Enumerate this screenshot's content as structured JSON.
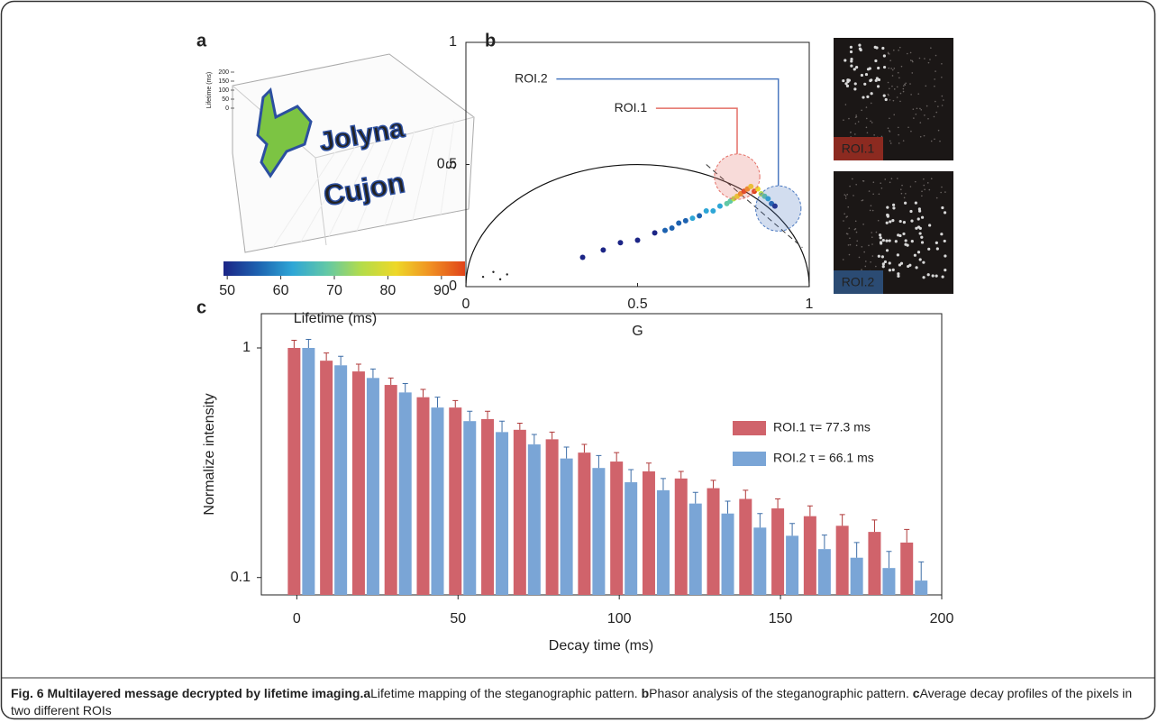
{
  "chart_data": [
    {
      "type": "colorbar",
      "panel": "a",
      "xlabel": "Lifetime (ms)",
      "xlim": [
        49.3,
        94.4
      ],
      "xticks": [
        50,
        60,
        70,
        80,
        90
      ],
      "colors": [
        "#1c2586",
        "#1d62b0",
        "#2ea6d6",
        "#62c8a6",
        "#b4dc4a",
        "#eed828",
        "#f09022",
        "#e0431a"
      ],
      "zlabel": "Lifetime (ms)",
      "zticks": [
        0,
        50,
        100,
        150,
        200
      ],
      "pattern_text": [
        "Jolyna",
        "Cujon"
      ],
      "pattern_color": "#7cc443"
    },
    {
      "type": "scatter",
      "panel": "b",
      "xlabel": "G",
      "ylabel": "S",
      "xlim": [
        0,
        1
      ],
      "ylim": [
        0,
        1
      ],
      "xticks": [
        0,
        0.5,
        1
      ],
      "yticks": [
        0,
        0.5,
        1
      ],
      "x": [
        0.05,
        0.08,
        0.1,
        0.12,
        0.34,
        0.4,
        0.45,
        0.5,
        0.55,
        0.58,
        0.6,
        0.62,
        0.64,
        0.66,
        0.68,
        0.7,
        0.72,
        0.74,
        0.76,
        0.77,
        0.78,
        0.79,
        0.8,
        0.81,
        0.82,
        0.83,
        0.84,
        0.85,
        0.86,
        0.87,
        0.88,
        0.89,
        0.9
      ],
      "y": [
        0.04,
        0.06,
        0.03,
        0.05,
        0.12,
        0.15,
        0.18,
        0.19,
        0.22,
        0.23,
        0.24,
        0.26,
        0.27,
        0.28,
        0.29,
        0.31,
        0.31,
        0.33,
        0.34,
        0.35,
        0.36,
        0.37,
        0.38,
        0.39,
        0.4,
        0.41,
        0.39,
        0.4,
        0.38,
        0.37,
        0.36,
        0.34,
        0.33
      ],
      "colors": [
        "#222",
        "#222",
        "#222",
        "#222",
        "#1c2586",
        "#1c2586",
        "#1c2586",
        "#1c2586",
        "#1c2586",
        "#1d62b0",
        "#1d62b0",
        "#1d62b0",
        "#1d62b0",
        "#2ea6d6",
        "#1d62b0",
        "#2ea6d6",
        "#2ea6d6",
        "#2ea6d6",
        "#62c8a6",
        "#62c8a6",
        "#b4dc4a",
        "#eed828",
        "#f09022",
        "#e0431a",
        "#f09022",
        "#eed828",
        "#e0431a",
        "#eed828",
        "#b4dc4a",
        "#62c8a6",
        "#2ea6d6",
        "#1d62b0",
        "#1c2586"
      ],
      "rois": [
        {
          "name": "ROI.1",
          "color": "#e46f66",
          "center": [
            0.79,
            0.45
          ],
          "radius": 0.066
        },
        {
          "name": "ROI.2",
          "color": "#4a78c0",
          "center": [
            0.91,
            0.32
          ],
          "radius": 0.066
        }
      ],
      "images": [
        {
          "label": "ROI.1",
          "color": "#8c2a20"
        },
        {
          "label": "ROI.2",
          "color": "#2b4b73"
        }
      ]
    },
    {
      "type": "bar",
      "panel": "c",
      "xlabel": "Decay time (ms)",
      "ylabel": "Normalize intensity",
      "log_y": true,
      "xlim": [
        -11,
        200
      ],
      "xticks": [
        0,
        50,
        100,
        150,
        200
      ],
      "ylim": [
        0.084,
        1.41
      ],
      "yticks": [
        0.1,
        1
      ],
      "legend": "upper right",
      "x": [
        0,
        10,
        20,
        30,
        40,
        50,
        60,
        70,
        80,
        90,
        100,
        110,
        120,
        130,
        140,
        150,
        160,
        170,
        180,
        190
      ],
      "series": [
        {
          "name": "ROI.1 τ= 77.3 ms",
          "color": "#d0636b",
          "error_color": "#b03a3a",
          "values": [
            1,
            0.88,
            0.79,
            0.69,
            0.61,
            0.55,
            0.49,
            0.44,
            0.4,
            0.35,
            0.32,
            0.29,
            0.27,
            0.245,
            0.22,
            0.2,
            0.185,
            0.168,
            0.158,
            0.142
          ],
          "errors": [
            0.08,
            0.07,
            0.06,
            0.05,
            0.05,
            0.04,
            0.04,
            0.03,
            0.03,
            0.03,
            0.03,
            0.025,
            0.02,
            0.02,
            0.02,
            0.02,
            0.02,
            0.02,
            0.02,
            0.02
          ]
        },
        {
          "name": "ROI.2 τ = 66.1 ms",
          "color": "#7aa5d6",
          "error_color": "#3f6fa8",
          "values": [
            1,
            0.84,
            0.74,
            0.64,
            0.55,
            0.48,
            0.43,
            0.38,
            0.33,
            0.3,
            0.26,
            0.24,
            0.21,
            0.19,
            0.165,
            0.152,
            0.133,
            0.122,
            0.11,
            0.097
          ],
          "errors": [
            0.09,
            0.08,
            0.07,
            0.06,
            0.06,
            0.05,
            0.05,
            0.04,
            0.04,
            0.04,
            0.035,
            0.03,
            0.025,
            0.025,
            0.025,
            0.02,
            0.02,
            0.02,
            0.02,
            0.02
          ]
        }
      ]
    }
  ],
  "caption": {
    "title": "Fig. 6 Multilayered message decrypted by lifetime imaging.",
    "parts": [
      {
        "label": "a",
        "text": "Lifetime mapping of the steganographic pattern."
      },
      {
        "label": "b",
        "text": "Phasor analysis of the steganographic pattern."
      },
      {
        "label": "c",
        "text": "Average decay profiles of the pixels in two different ROIs"
      }
    ]
  }
}
